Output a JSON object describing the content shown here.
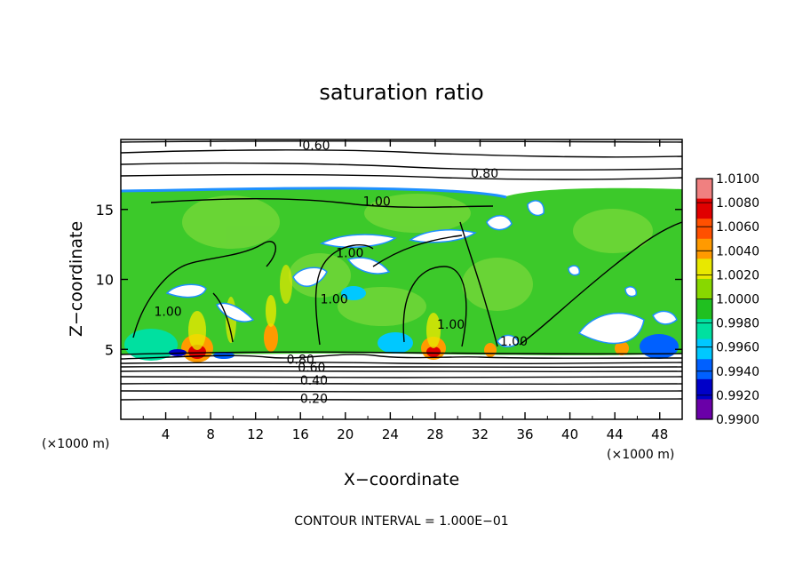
{
  "chart_data": {
    "type": "heatmap",
    "title": "saturation ratio",
    "xlabel": "X−coordinate",
    "ylabel": "Z−coordinate",
    "x_unit_left": "(×1000 m)",
    "x_unit_right": "(×1000 m)",
    "footer": "CONTOUR INTERVAL = 1.000E−01",
    "xlim": [
      0,
      50
    ],
    "ylim": [
      0,
      20
    ],
    "x_ticks": [
      4,
      8,
      12,
      16,
      20,
      24,
      28,
      32,
      36,
      40,
      44,
      48
    ],
    "x_tick_labels": [
      "4",
      "8",
      "12",
      "16",
      "20",
      "24",
      "28",
      "32",
      "36",
      "40",
      "44",
      "48"
    ],
    "y_ticks": [
      5,
      10,
      15
    ],
    "y_tick_labels": [
      "5",
      "10",
      "15"
    ],
    "colorbar": {
      "min": 0.99,
      "max": 1.01,
      "labels": [
        "1.0100",
        "1.0080",
        "1.0060",
        "1.0040",
        "1.0020",
        "1.0000",
        "0.9980",
        "0.9960",
        "0.9940",
        "0.9920",
        "0.9900"
      ],
      "colors": [
        "#f08080",
        "#e00000",
        "#ff5000",
        "#ff9a00",
        "#e8e800",
        "#88d800",
        "#20c020",
        "#00e0a0",
        "#00c8ff",
        "#0060ff",
        "#0000c8",
        "#6a00a8"
      ]
    },
    "contour_labels": [
      {
        "text": "0.60",
        "x": 17.4,
        "z": 19.6
      },
      {
        "text": "0.80",
        "x": 32.4,
        "z": 17.6
      },
      {
        "text": "1.00",
        "x": 22.8,
        "z": 15.6
      },
      {
        "text": "1.00",
        "x": 20.4,
        "z": 11.9
      },
      {
        "text": "1.00",
        "x": 4.2,
        "z": 7.7
      },
      {
        "text": "1.00",
        "x": 19.0,
        "z": 8.6
      },
      {
        "text": "1.00",
        "x": 29.4,
        "z": 6.8
      },
      {
        "text": "1.00",
        "x": 35.0,
        "z": 5.6
      },
      {
        "text": "0.80",
        "x": 16.0,
        "z": 4.3
      },
      {
        "text": "0.60",
        "x": 17.0,
        "z": 3.7
      },
      {
        "text": "0.40",
        "x": 17.2,
        "z": 2.8
      },
      {
        "text": "0.20",
        "x": 17.2,
        "z": 1.5
      }
    ]
  }
}
